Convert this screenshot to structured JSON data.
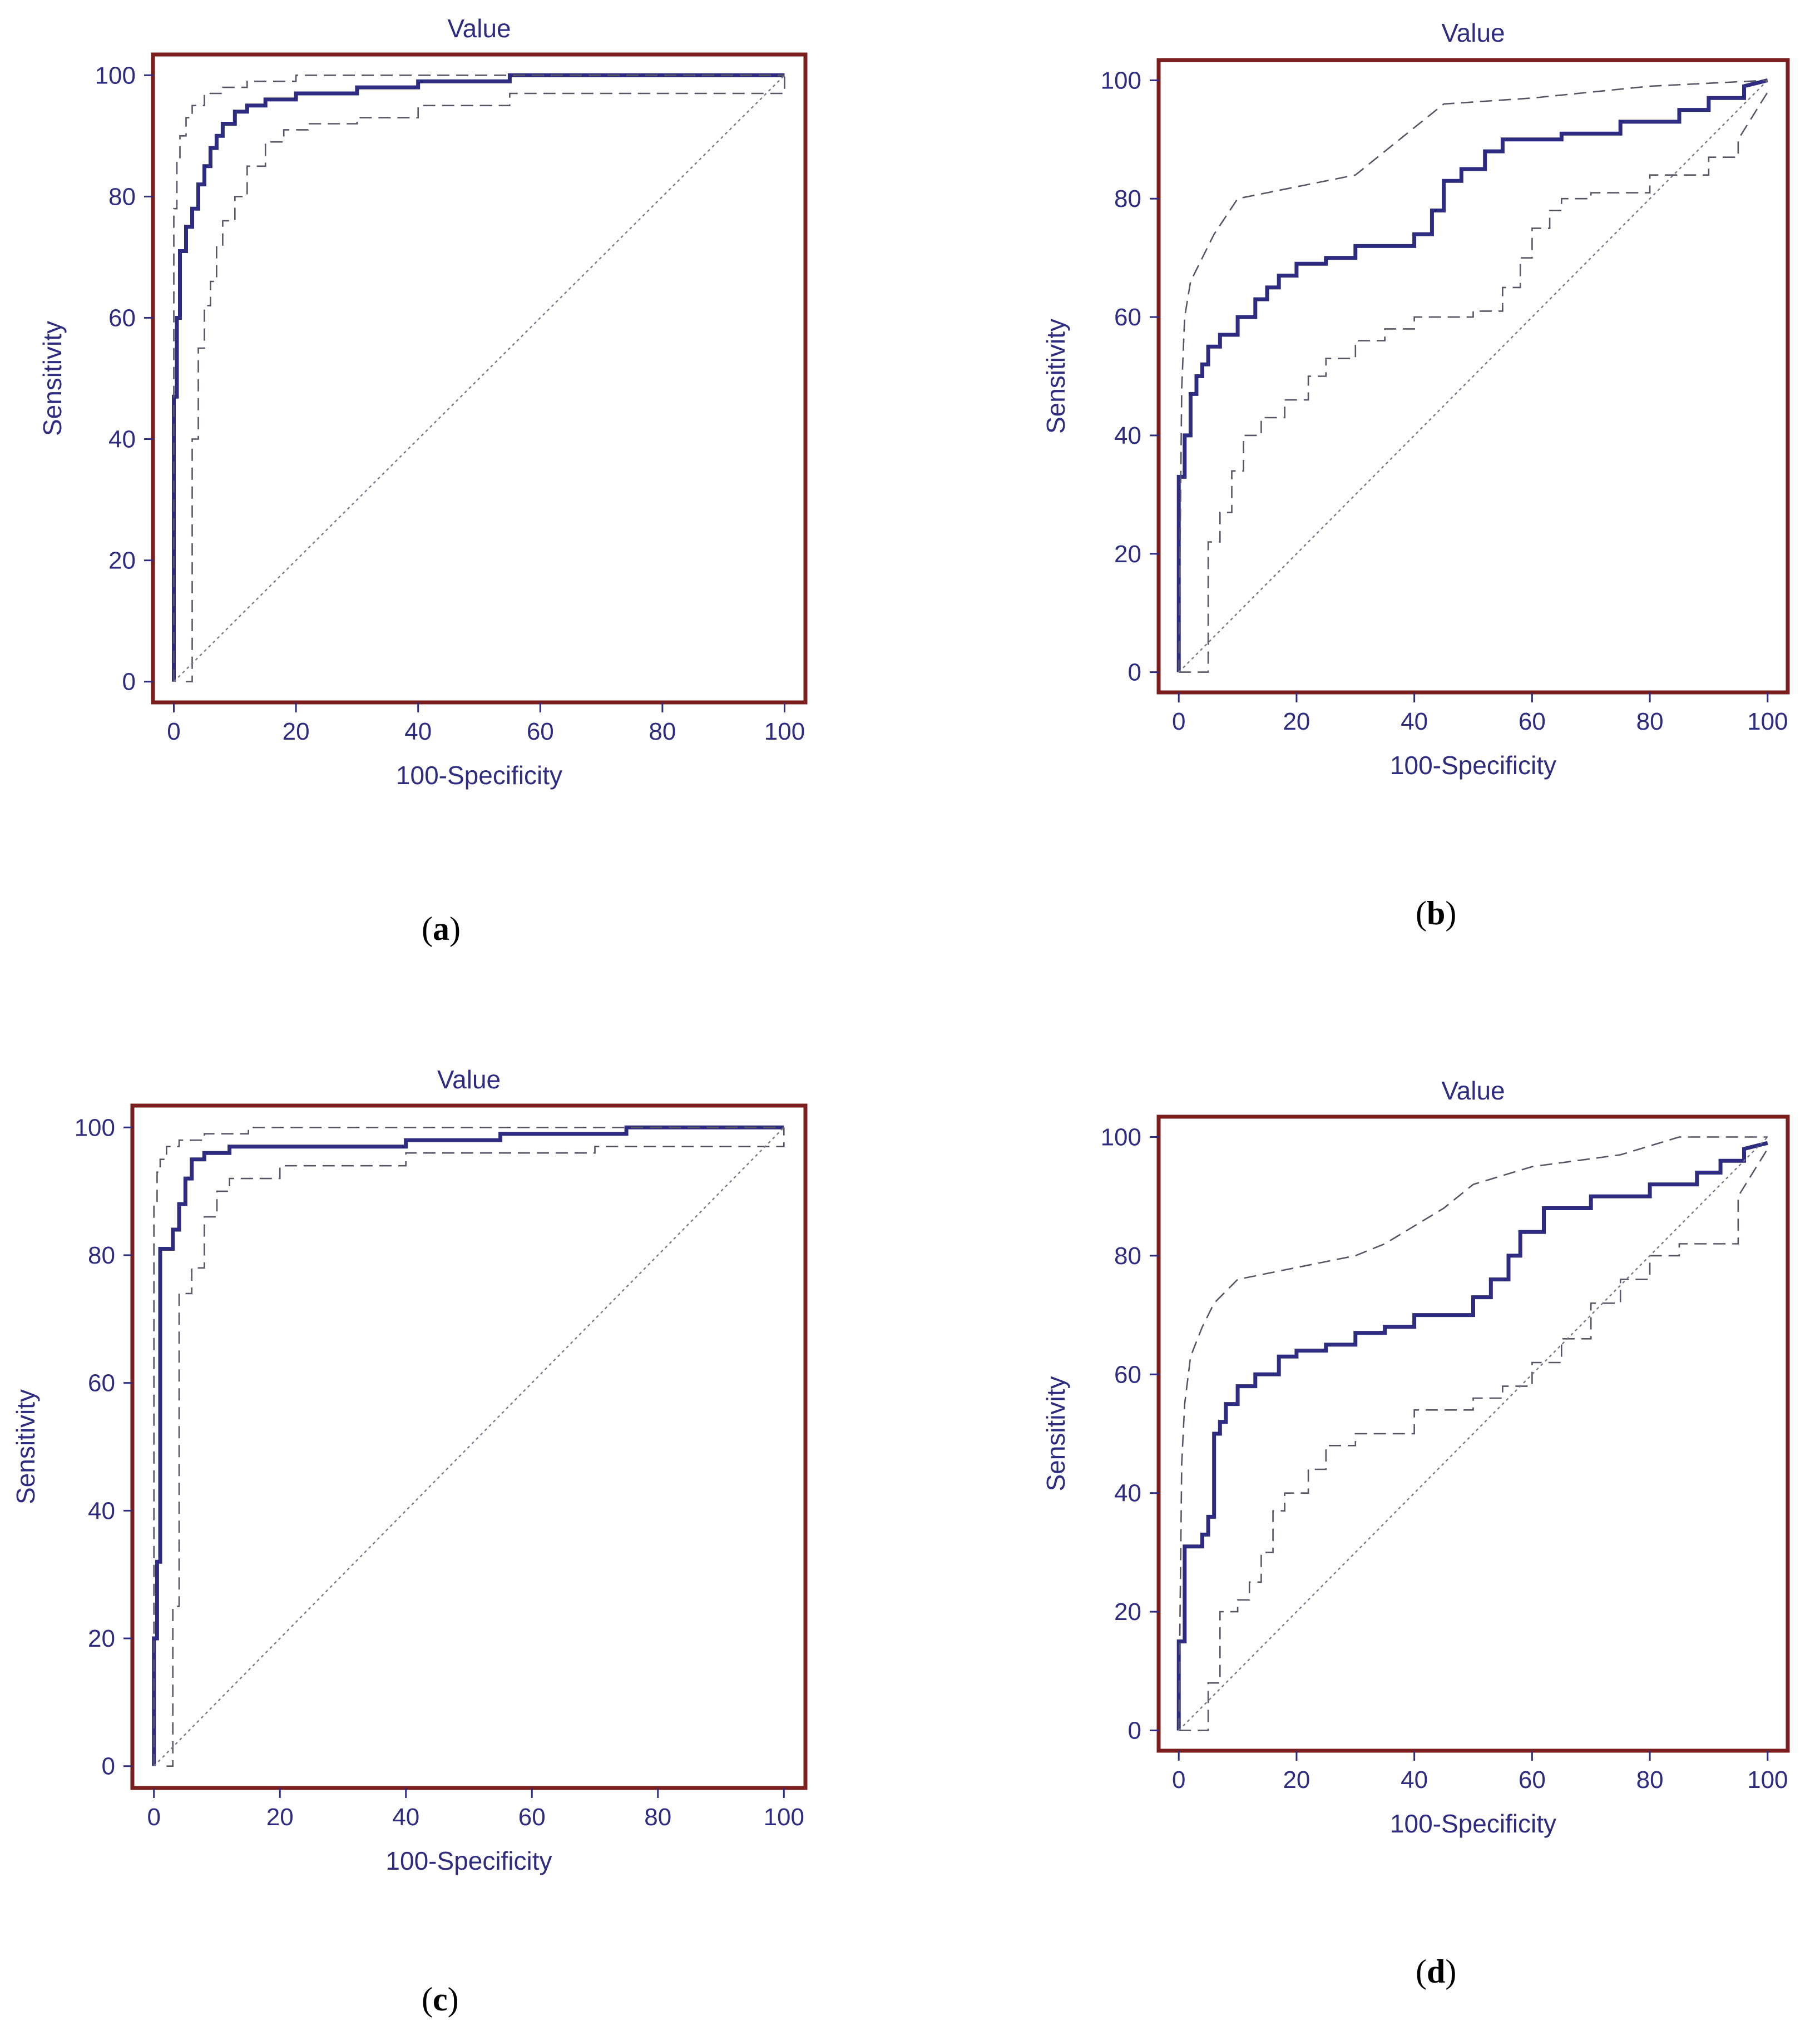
{
  "colors": {
    "frame": "#7a1e1e",
    "roc": "#2e2c80",
    "ci": "#555566",
    "diagonal": "#777788",
    "text": "#2e2c80"
  },
  "chart_data": [
    {
      "type": "line",
      "panel": "a",
      "caption_letter": "a",
      "title": "Value",
      "xlabel": "100-Specificity",
      "ylabel": "Sensitivity",
      "xlim": [
        0,
        100
      ],
      "ylim": [
        0,
        100
      ],
      "xticks": [
        0,
        20,
        40,
        60,
        80,
        100
      ],
      "yticks": [
        0,
        20,
        40,
        60,
        80,
        100
      ],
      "series": [
        {
          "name": "ROC curve",
          "style": "roc",
          "x": [
            0,
            0,
            0.5,
            0.5,
            1,
            1,
            2,
            2,
            3,
            3,
            4,
            4,
            5,
            5,
            6,
            6,
            7,
            7,
            8,
            8,
            10,
            10,
            12,
            12,
            15,
            15,
            20,
            20,
            30,
            30,
            40,
            40,
            55,
            55,
            100
          ],
          "y": [
            0,
            47,
            47,
            60,
            60,
            71,
            71,
            75,
            75,
            78,
            78,
            82,
            82,
            85,
            85,
            88,
            88,
            90,
            90,
            92,
            92,
            94,
            94,
            95,
            95,
            96,
            96,
            97,
            97,
            98,
            98,
            99,
            99,
            100,
            100
          ]
        },
        {
          "name": "Upper 95% CI",
          "style": "ci",
          "x": [
            0,
            0,
            0.5,
            0.5,
            1,
            1,
            2,
            2,
            3,
            3,
            5,
            5,
            8,
            8,
            12,
            12,
            20,
            20,
            100
          ],
          "y": [
            0,
            78,
            78,
            86,
            86,
            90,
            90,
            93,
            93,
            95,
            95,
            97,
            97,
            98,
            98,
            99,
            99,
            100,
            100
          ]
        },
        {
          "name": "Lower 95% CI",
          "style": "ci",
          "x": [
            2,
            3,
            3,
            4,
            4,
            5,
            5,
            6,
            6,
            7,
            7,
            8,
            8,
            10,
            10,
            12,
            12,
            15,
            15,
            18,
            18,
            22,
            22,
            30,
            30,
            40,
            40,
            55,
            55,
            100,
            100
          ],
          "y": [
            0,
            0,
            40,
            40,
            55,
            55,
            62,
            62,
            66,
            66,
            72,
            72,
            76,
            76,
            80,
            80,
            85,
            85,
            89,
            89,
            91,
            91,
            92,
            92,
            93,
            93,
            95,
            95,
            97,
            97,
            100
          ]
        },
        {
          "name": "Reference line",
          "style": "diag",
          "x": [
            0,
            100
          ],
          "y": [
            0,
            100
          ]
        }
      ]
    },
    {
      "type": "line",
      "panel": "b",
      "caption_letter": "b",
      "title": "Value",
      "xlabel": "100-Specificity",
      "ylabel": "Sensitivity",
      "xlim": [
        0,
        100
      ],
      "ylim": [
        0,
        100
      ],
      "xticks": [
        0,
        20,
        40,
        60,
        80,
        100
      ],
      "yticks": [
        0,
        20,
        40,
        60,
        80,
        100
      ],
      "series": [
        {
          "name": "ROC curve",
          "style": "roc",
          "x": [
            0,
            0,
            1,
            1,
            2,
            2,
            3,
            3,
            4,
            4,
            5,
            5,
            7,
            7,
            10,
            10,
            13,
            13,
            15,
            15,
            17,
            17,
            20,
            20,
            25,
            25,
            30,
            30,
            40,
            40,
            43,
            43,
            45,
            45,
            48,
            48,
            52,
            52,
            55,
            55,
            65,
            65,
            75,
            75,
            85,
            85,
            90,
            90,
            96,
            96,
            100
          ],
          "y": [
            0,
            33,
            33,
            40,
            40,
            47,
            47,
            50,
            50,
            52,
            52,
            55,
            55,
            57,
            57,
            60,
            60,
            63,
            63,
            65,
            65,
            67,
            67,
            69,
            69,
            70,
            70,
            72,
            72,
            74,
            74,
            78,
            78,
            83,
            83,
            85,
            85,
            88,
            88,
            90,
            90,
            91,
            91,
            93,
            93,
            95,
            95,
            97,
            97,
            99,
            100
          ]
        },
        {
          "name": "Upper 95% CI",
          "style": "ci",
          "x": [
            0,
            0.5,
            0.5,
            1,
            1,
            2,
            2,
            4,
            4,
            6,
            6,
            8,
            8,
            10,
            10,
            15,
            15,
            20,
            20,
            30,
            30,
            35,
            35,
            40,
            40,
            45,
            45,
            60,
            60,
            80,
            80,
            100
          ],
          "y": [
            0,
            48,
            48,
            60,
            60,
            66,
            66,
            70,
            70,
            74,
            74,
            77,
            77,
            80,
            80,
            81,
            81,
            82,
            82,
            84,
            84,
            88,
            88,
            92,
            92,
            96,
            96,
            97,
            97,
            99,
            99,
            100
          ]
        },
        {
          "name": "Lower 95% CI",
          "style": "ci",
          "x": [
            0,
            5,
            5,
            7,
            7,
            9,
            9,
            11,
            11,
            14,
            14,
            18,
            18,
            22,
            22,
            25,
            25,
            30,
            30,
            35,
            35,
            40,
            40,
            50,
            50,
            55,
            55,
            58,
            58,
            60,
            60,
            63,
            63,
            65,
            65,
            70,
            70,
            80,
            80,
            90,
            90,
            95,
            95,
            100
          ],
          "y": [
            0,
            0,
            22,
            22,
            27,
            27,
            34,
            34,
            40,
            40,
            43,
            43,
            46,
            46,
            50,
            50,
            53,
            53,
            56,
            56,
            58,
            58,
            60,
            60,
            61,
            61,
            65,
            65,
            70,
            70,
            75,
            75,
            78,
            78,
            80,
            80,
            81,
            81,
            84,
            84,
            87,
            87,
            90,
            98
          ]
        },
        {
          "name": "Reference line",
          "style": "diag",
          "x": [
            0,
            100
          ],
          "y": [
            0,
            100
          ]
        }
      ]
    },
    {
      "type": "line",
      "panel": "c",
      "caption_letter": "c",
      "title": "Value",
      "xlabel": "100-Specificity",
      "ylabel": "Sensitivity",
      "xlim": [
        0,
        100
      ],
      "ylim": [
        0,
        100
      ],
      "xticks": [
        0,
        20,
        40,
        60,
        80,
        100
      ],
      "yticks": [
        0,
        20,
        40,
        60,
        80,
        100
      ],
      "series": [
        {
          "name": "ROC curve",
          "style": "roc",
          "x": [
            0,
            0,
            0.5,
            0.5,
            1,
            1,
            2,
            2,
            3,
            3,
            4,
            4,
            5,
            5,
            6,
            6,
            8,
            8,
            12,
            12,
            20,
            20,
            40,
            40,
            55,
            55,
            75,
            75,
            100
          ],
          "y": [
            0,
            20,
            20,
            32,
            32,
            81,
            81,
            81,
            81,
            84,
            84,
            88,
            88,
            92,
            92,
            95,
            95,
            96,
            96,
            97,
            97,
            97,
            97,
            98,
            98,
            99,
            99,
            100,
            100
          ]
        },
        {
          "name": "Upper 95% CI",
          "style": "ci",
          "x": [
            0,
            0,
            0.5,
            0.5,
            1,
            1,
            2,
            2,
            4,
            4,
            8,
            8,
            15,
            15,
            100
          ],
          "y": [
            0,
            88,
            88,
            93,
            93,
            95,
            95,
            97,
            97,
            98,
            98,
            99,
            99,
            100,
            100
          ]
        },
        {
          "name": "Lower 95% CI",
          "style": "ci",
          "x": [
            2,
            3,
            3,
            4,
            4,
            6,
            6,
            8,
            8,
            10,
            10,
            12,
            12,
            20,
            20,
            40,
            40,
            70,
            70,
            100,
            100
          ],
          "y": [
            0,
            0,
            25,
            25,
            74,
            74,
            78,
            78,
            86,
            86,
            90,
            90,
            92,
            92,
            94,
            94,
            96,
            96,
            97,
            97,
            100
          ]
        },
        {
          "name": "Reference line",
          "style": "diag",
          "x": [
            0,
            100
          ],
          "y": [
            0,
            100
          ]
        }
      ]
    },
    {
      "type": "line",
      "panel": "d",
      "caption_letter": "d",
      "title": "Value",
      "xlabel": "100-Specificity",
      "ylabel": "Sensitivity",
      "xlim": [
        0,
        100
      ],
      "ylim": [
        0,
        100
      ],
      "xticks": [
        0,
        20,
        40,
        60,
        80,
        100
      ],
      "yticks": [
        0,
        20,
        40,
        60,
        80,
        100
      ],
      "series": [
        {
          "name": "ROC curve",
          "style": "roc",
          "x": [
            0,
            0,
            1,
            1,
            2,
            2,
            4,
            4,
            5,
            5,
            6,
            6,
            7,
            7,
            8,
            8,
            10,
            10,
            13,
            13,
            17,
            17,
            20,
            20,
            25,
            25,
            30,
            30,
            35,
            35,
            40,
            40,
            50,
            50,
            53,
            53,
            56,
            56,
            58,
            58,
            62,
            62,
            70,
            70,
            80,
            80,
            88,
            88,
            92,
            92,
            96,
            96,
            100
          ],
          "y": [
            0,
            15,
            15,
            31,
            31,
            31,
            31,
            33,
            33,
            36,
            36,
            50,
            50,
            52,
            52,
            55,
            55,
            58,
            58,
            60,
            60,
            63,
            63,
            64,
            64,
            65,
            65,
            67,
            67,
            68,
            68,
            70,
            70,
            73,
            73,
            76,
            76,
            80,
            80,
            84,
            84,
            88,
            88,
            90,
            90,
            92,
            92,
            94,
            94,
            96,
            96,
            98,
            99
          ]
        },
        {
          "name": "Upper 95% CI",
          "style": "ci",
          "x": [
            0,
            0.5,
            0.5,
            1,
            1,
            2,
            2,
            4,
            4,
            6,
            6,
            8,
            8,
            10,
            10,
            15,
            15,
            20,
            20,
            30,
            30,
            35,
            35,
            40,
            40,
            45,
            45,
            50,
            50,
            60,
            60,
            75,
            75,
            85,
            85,
            100
          ],
          "y": [
            0,
            45,
            45,
            55,
            55,
            63,
            63,
            68,
            68,
            72,
            72,
            74,
            74,
            76,
            76,
            77,
            77,
            78,
            78,
            80,
            80,
            82,
            82,
            85,
            85,
            88,
            88,
            92,
            92,
            95,
            95,
            97,
            97,
            100,
            100,
            100
          ]
        },
        {
          "name": "Lower 95% CI",
          "style": "ci",
          "x": [
            0,
            5,
            5,
            7,
            7,
            10,
            10,
            12,
            12,
            14,
            14,
            16,
            16,
            18,
            18,
            22,
            22,
            25,
            25,
            30,
            30,
            40,
            40,
            50,
            50,
            55,
            55,
            60,
            60,
            65,
            65,
            70,
            70,
            75,
            75,
            80,
            80,
            85,
            85,
            90,
            90,
            95,
            95,
            100
          ],
          "y": [
            0,
            0,
            8,
            8,
            20,
            20,
            22,
            22,
            25,
            25,
            30,
            30,
            37,
            37,
            40,
            40,
            44,
            44,
            48,
            48,
            50,
            50,
            54,
            54,
            56,
            56,
            58,
            58,
            62,
            62,
            66,
            66,
            72,
            72,
            76,
            76,
            80,
            80,
            82,
            82,
            82,
            82,
            90,
            98
          ]
        },
        {
          "name": "Reference line",
          "style": "diag",
          "x": [
            0,
            100
          ],
          "y": [
            0,
            100
          ]
        }
      ]
    }
  ]
}
